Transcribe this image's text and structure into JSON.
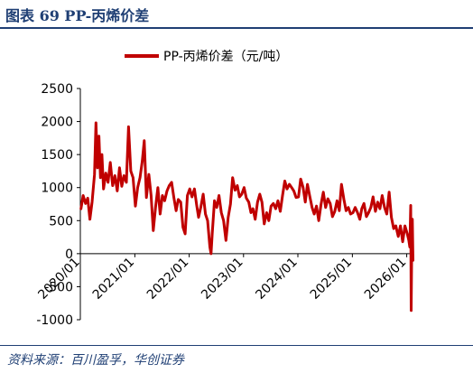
{
  "header": {
    "figure_title": "图表 69 PP-丙烯价差"
  },
  "footer": {
    "source": "资料来源：百川盈孚，华创证券"
  },
  "colors": {
    "series": "#c00000",
    "accent": "#1f3f74"
  },
  "chart_data": {
    "type": "line",
    "title": "",
    "xlabel": "",
    "ylabel": "",
    "ylim": [
      -1000,
      2500
    ],
    "yticks": [
      -1000,
      -500,
      0,
      500,
      1000,
      1500,
      2000,
      2500
    ],
    "xlim": [
      "2020-01-01",
      "2026-02-15"
    ],
    "xticks": [
      {
        "date": "2020-01-01",
        "label": "2020/01"
      },
      {
        "date": "2021-01-01",
        "label": "2021/01"
      },
      {
        "date": "2022-01-01",
        "label": "2022/01"
      },
      {
        "date": "2023-01-01",
        "label": "2023/01"
      },
      {
        "date": "2024-01-01",
        "label": "2024/01"
      },
      {
        "date": "2025-01-01",
        "label": "2025/01"
      },
      {
        "date": "2026-01-01",
        "label": "2026/01"
      }
    ],
    "legend": {
      "position": "top-center"
    },
    "series": [
      {
        "name": "PP-丙烯价差（元/吨）",
        "color": "#c00000",
        "points": [
          [
            "2020-01-05",
            680
          ],
          [
            "2020-01-20",
            880
          ],
          [
            "2020-02-05",
            760
          ],
          [
            "2020-02-20",
            840
          ],
          [
            "2020-03-05",
            520
          ],
          [
            "2020-03-20",
            780
          ],
          [
            "2020-04-05",
            1200
          ],
          [
            "2020-04-15",
            1980
          ],
          [
            "2020-04-25",
            1300
          ],
          [
            "2020-05-05",
            1780
          ],
          [
            "2020-05-15",
            1150
          ],
          [
            "2020-05-25",
            1500
          ],
          [
            "2020-06-05",
            980
          ],
          [
            "2020-06-20",
            1220
          ],
          [
            "2020-07-05",
            1080
          ],
          [
            "2020-07-20",
            1380
          ],
          [
            "2020-08-05",
            1030
          ],
          [
            "2020-08-20",
            1180
          ],
          [
            "2020-09-05",
            950
          ],
          [
            "2020-09-20",
            1300
          ],
          [
            "2020-10-05",
            1020
          ],
          [
            "2020-10-20",
            1180
          ],
          [
            "2020-11-05",
            1080
          ],
          [
            "2020-11-20",
            1920
          ],
          [
            "2020-12-05",
            1250
          ],
          [
            "2020-12-20",
            1150
          ],
          [
            "2021-01-05",
            720
          ],
          [
            "2021-01-20",
            1000
          ],
          [
            "2021-02-05",
            1150
          ],
          [
            "2021-02-20",
            1400
          ],
          [
            "2021-03-05",
            1710
          ],
          [
            "2021-03-20",
            850
          ],
          [
            "2021-04-05",
            1200
          ],
          [
            "2021-04-20",
            880
          ],
          [
            "2021-05-05",
            350
          ],
          [
            "2021-05-20",
            700
          ],
          [
            "2021-06-05",
            1000
          ],
          [
            "2021-06-20",
            600
          ],
          [
            "2021-07-05",
            880
          ],
          [
            "2021-07-20",
            800
          ],
          [
            "2021-08-05",
            950
          ],
          [
            "2021-08-20",
            1030
          ],
          [
            "2021-09-05",
            1080
          ],
          [
            "2021-09-20",
            850
          ],
          [
            "2021-10-05",
            650
          ],
          [
            "2021-10-20",
            820
          ],
          [
            "2021-11-05",
            780
          ],
          [
            "2021-11-20",
            400
          ],
          [
            "2021-12-05",
            300
          ],
          [
            "2021-12-20",
            880
          ],
          [
            "2022-01-05",
            980
          ],
          [
            "2022-01-20",
            860
          ],
          [
            "2022-02-05",
            980
          ],
          [
            "2022-02-20",
            740
          ],
          [
            "2022-03-05",
            550
          ],
          [
            "2022-03-20",
            700
          ],
          [
            "2022-04-05",
            900
          ],
          [
            "2022-04-20",
            600
          ],
          [
            "2022-05-05",
            500
          ],
          [
            "2022-05-20",
            100
          ],
          [
            "2022-05-28",
            0
          ],
          [
            "2022-06-05",
            300
          ],
          [
            "2022-06-20",
            800
          ],
          [
            "2022-07-05",
            700
          ],
          [
            "2022-07-20",
            880
          ],
          [
            "2022-08-05",
            620
          ],
          [
            "2022-08-20",
            500
          ],
          [
            "2022-09-05",
            200
          ],
          [
            "2022-09-20",
            550
          ],
          [
            "2022-10-05",
            750
          ],
          [
            "2022-10-20",
            1150
          ],
          [
            "2022-11-05",
            960
          ],
          [
            "2022-11-20",
            1030
          ],
          [
            "2022-12-05",
            860
          ],
          [
            "2022-12-20",
            900
          ],
          [
            "2023-01-05",
            1000
          ],
          [
            "2023-01-20",
            840
          ],
          [
            "2023-02-05",
            780
          ],
          [
            "2023-02-20",
            620
          ],
          [
            "2023-03-05",
            680
          ],
          [
            "2023-03-20",
            520
          ],
          [
            "2023-04-05",
            780
          ],
          [
            "2023-04-20",
            900
          ],
          [
            "2023-05-05",
            780
          ],
          [
            "2023-05-20",
            450
          ],
          [
            "2023-06-05",
            620
          ],
          [
            "2023-06-20",
            500
          ],
          [
            "2023-07-05",
            720
          ],
          [
            "2023-07-20",
            760
          ],
          [
            "2023-08-05",
            680
          ],
          [
            "2023-08-20",
            800
          ],
          [
            "2023-09-05",
            640
          ],
          [
            "2023-09-20",
            880
          ],
          [
            "2023-10-05",
            1100
          ],
          [
            "2023-10-20",
            980
          ],
          [
            "2023-11-05",
            1050
          ],
          [
            "2023-11-20",
            1000
          ],
          [
            "2023-12-05",
            950
          ],
          [
            "2023-12-20",
            850
          ],
          [
            "2024-01-05",
            860
          ],
          [
            "2024-01-20",
            1130
          ],
          [
            "2024-02-05",
            1000
          ],
          [
            "2024-02-20",
            780
          ],
          [
            "2024-03-05",
            1050
          ],
          [
            "2024-03-20",
            880
          ],
          [
            "2024-04-05",
            700
          ],
          [
            "2024-04-20",
            600
          ],
          [
            "2024-05-05",
            720
          ],
          [
            "2024-05-20",
            500
          ],
          [
            "2024-06-05",
            750
          ],
          [
            "2024-06-20",
            930
          ],
          [
            "2024-07-05",
            700
          ],
          [
            "2024-07-20",
            830
          ],
          [
            "2024-08-05",
            760
          ],
          [
            "2024-08-20",
            560
          ],
          [
            "2024-09-05",
            640
          ],
          [
            "2024-09-20",
            800
          ],
          [
            "2024-10-05",
            650
          ],
          [
            "2024-10-20",
            1050
          ],
          [
            "2024-11-05",
            820
          ],
          [
            "2024-11-20",
            650
          ],
          [
            "2024-12-05",
            700
          ],
          [
            "2024-12-20",
            600
          ],
          [
            "2025-01-05",
            620
          ],
          [
            "2025-01-20",
            700
          ],
          [
            "2025-02-05",
            620
          ],
          [
            "2025-02-20",
            520
          ],
          [
            "2025-03-05",
            680
          ],
          [
            "2025-03-20",
            760
          ],
          [
            "2025-04-05",
            560
          ],
          [
            "2025-04-20",
            620
          ],
          [
            "2025-05-05",
            700
          ],
          [
            "2025-05-20",
            860
          ],
          [
            "2025-06-05",
            640
          ],
          [
            "2025-06-20",
            780
          ],
          [
            "2025-07-05",
            680
          ],
          [
            "2025-07-20",
            880
          ],
          [
            "2025-08-05",
            700
          ],
          [
            "2025-08-20",
            600
          ],
          [
            "2025-09-05",
            930
          ],
          [
            "2025-09-20",
            550
          ],
          [
            "2025-10-05",
            380
          ],
          [
            "2025-10-20",
            420
          ],
          [
            "2025-11-05",
            260
          ],
          [
            "2025-11-20",
            420
          ],
          [
            "2025-12-05",
            180
          ],
          [
            "2025-12-20",
            420
          ],
          [
            "2026-01-05",
            300
          ],
          [
            "2026-01-15",
            200
          ],
          [
            "2026-01-22",
            100
          ],
          [
            "2026-01-28",
            730
          ],
          [
            "2026-01-31",
            -860
          ],
          [
            "2026-02-04",
            180
          ],
          [
            "2026-02-08",
            520
          ],
          [
            "2026-02-12",
            -100
          ]
        ]
      }
    ]
  }
}
